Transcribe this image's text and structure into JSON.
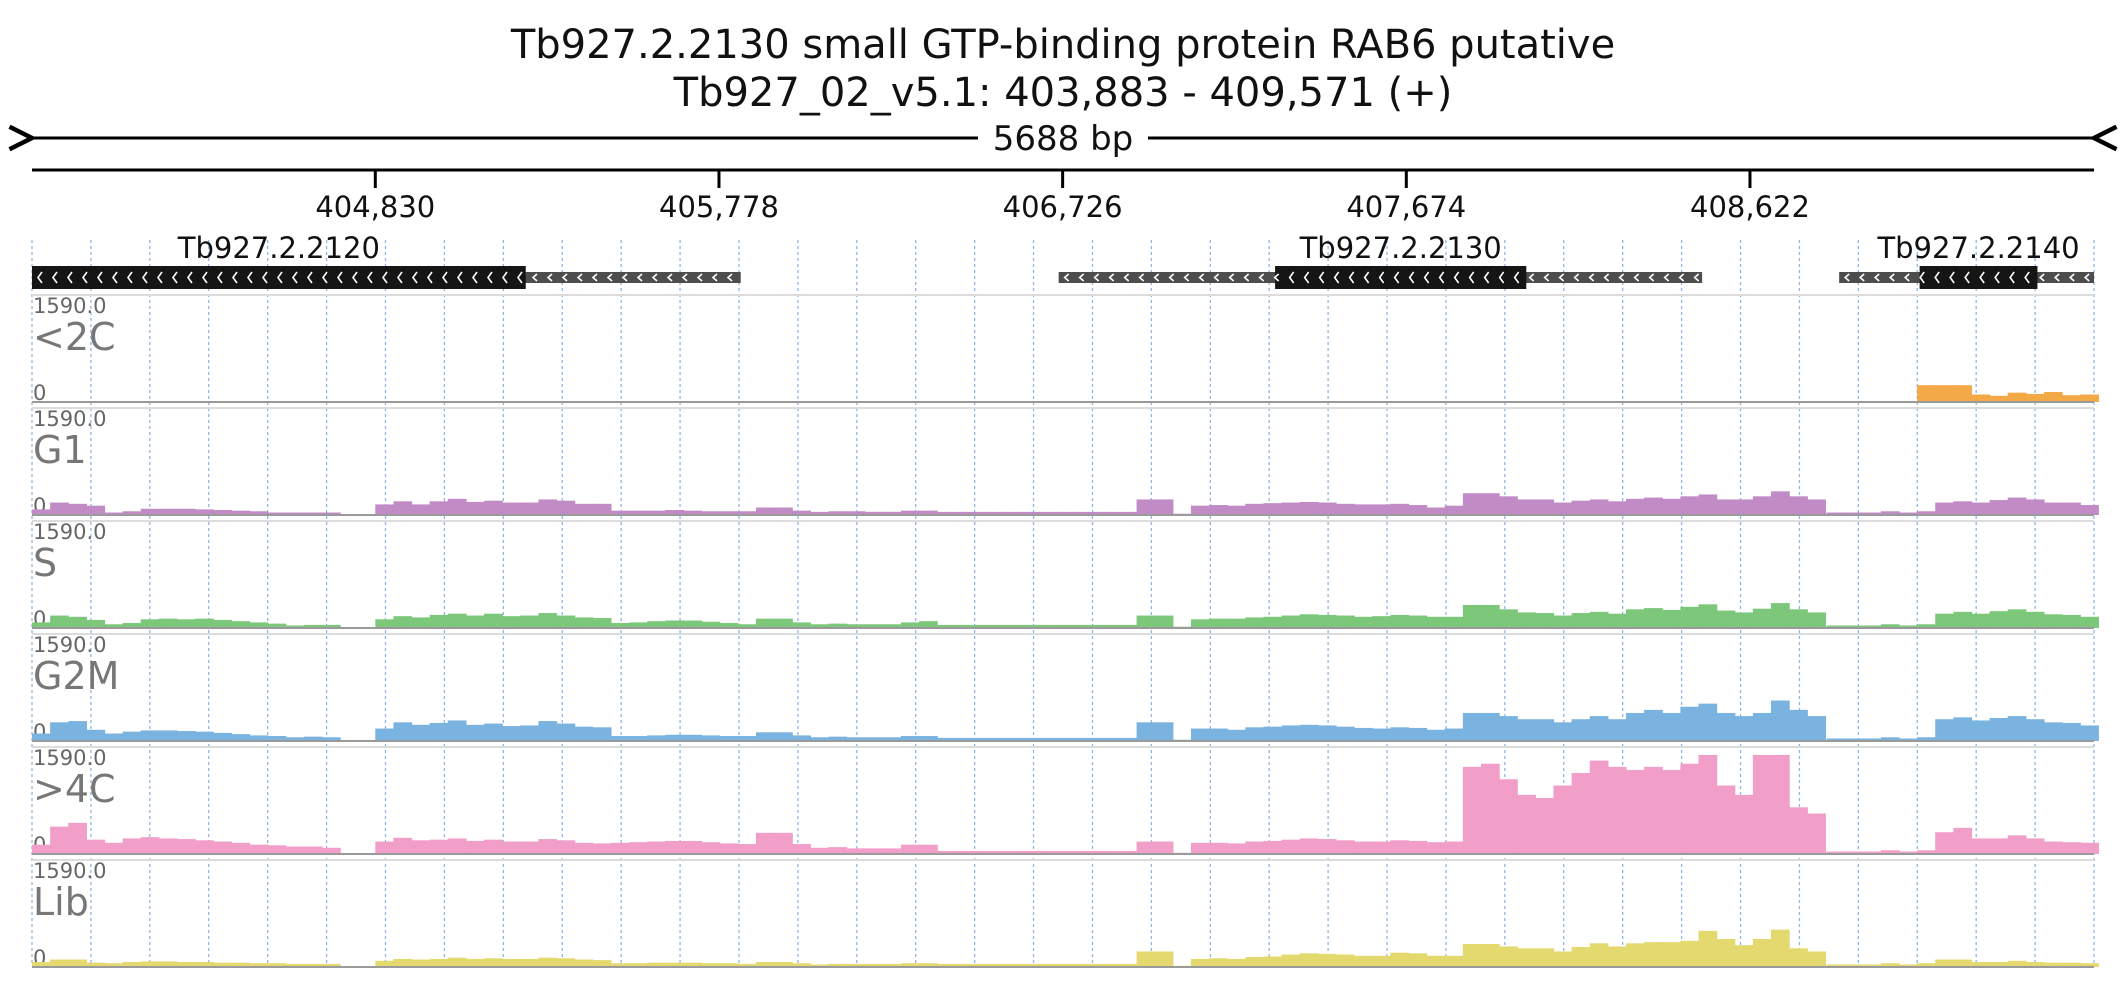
{
  "header": {
    "title": "Tb927.2.2130  small GTP-binding protein RAB6  putative",
    "location": "Tb927_02_v5.1: 403,883 - 409,571 (+)",
    "span_label": "5688 bp"
  },
  "chart_data": {
    "type": "area",
    "region": {
      "chrom": "Tb927_02_v5.1",
      "start": 403883,
      "end": 409571,
      "strand": "+"
    },
    "ruler_ticks": [
      {
        "pos": 404830,
        "label": "404,830"
      },
      {
        "pos": 405778,
        "label": "405,778"
      },
      {
        "pos": 406726,
        "label": "406,726"
      },
      {
        "pos": 407674,
        "label": "407,674"
      },
      {
        "pos": 408622,
        "label": "408,622"
      }
    ],
    "genes": [
      {
        "name": "Tb927.2.2120",
        "strand": "-",
        "start": 403883,
        "end": 405838,
        "cds_start": 403883,
        "cds_end": 405245
      },
      {
        "name": "Tb927.2.2130",
        "strand": "-",
        "start": 406715,
        "end": 408490,
        "cds_start": 407312,
        "cds_end": 408005
      },
      {
        "name": "Tb927.2.2140",
        "strand": "-",
        "start": 408868,
        "end": 409571,
        "cds_start": 409090,
        "cds_end": 409415
      }
    ],
    "y_max_label": "1590.0",
    "y_min_label": "0",
    "ylim": [
      0,
      1590
    ],
    "bin_size": 50,
    "tracks": [
      {
        "name": "<2C",
        "color": "#f3a946",
        "segments": [
          {
            "x0": 409083,
            "values": [
              270,
              270,
              270,
              120,
              100,
              150,
              130,
              160,
              110,
              120,
              110,
              90,
              90,
              70,
              50,
              40,
              60,
              90,
              140,
              150,
              160,
              180,
              170
            ]
          }
        ]
      },
      {
        "name": "G1",
        "color": "#c18bc5",
        "segments": [
          {
            "x0": 403883,
            "values": [
              90,
              200,
              180,
              150,
              40,
              60,
              100,
              100,
              100,
              90,
              80,
              70,
              60,
              40,
              40,
              40,
              40
            ]
          },
          {
            "x0": 404830,
            "values": [
              170,
              220,
              170,
              220,
              260,
              210,
              230,
              200,
              200,
              250,
              230,
              180,
              180
            ]
          },
          {
            "x0": 405480,
            "values": [
              70,
              70,
              70,
              80,
              70,
              60,
              60,
              60,
              120,
              120,
              70,
              50,
              60,
              60,
              50,
              50,
              70,
              70
            ]
          },
          {
            "x0": 406110,
            "values": [
              50,
              50,
              50,
              50,
              50,
              50,
              50,
              50,
              50,
              50,
              50,
              50,
              50,
              50,
              50,
              50,
              50,
              50
            ]
          },
          {
            "x0": 406930,
            "values": [
              250,
              250,
              20,
              150,
              160,
              150,
              180,
              190,
              200,
              210,
              200,
              180,
              170,
              170,
              180,
              160,
              120,
              150,
              350,
              350,
              300,
              250,
              250,
              200,
              230,
              250,
              220,
              260,
              280,
              260,
              300,
              330,
              250,
              250,
              300,
              380,
              300,
              250
            ]
          },
          {
            "x0": 408833,
            "values": [
              40,
              40,
              40,
              60,
              40,
              60,
              200,
              220,
              200,
              240,
              280,
              250,
              200,
              200,
              160
            ]
          }
        ]
      },
      {
        "name": "S",
        "color": "#7cc77a",
        "segments": [
          {
            "x0": 403883,
            "values": [
              90,
              200,
              180,
              130,
              60,
              80,
              140,
              150,
              140,
              150,
              130,
              110,
              90,
              70,
              40,
              50,
              50
            ]
          },
          {
            "x0": 404830,
            "values": [
              140,
              190,
              170,
              210,
              230,
              200,
              230,
              190,
              200,
              240,
              200,
              170,
              160
            ]
          },
          {
            "x0": 405480,
            "values": [
              80,
              90,
              110,
              120,
              120,
              100,
              80,
              60,
              150,
              150,
              90,
              60,
              70,
              60,
              60,
              60,
              90,
              110
            ]
          },
          {
            "x0": 406110,
            "values": [
              50,
              50,
              50,
              50,
              50,
              50,
              50,
              50,
              50,
              50,
              50,
              50,
              50,
              50,
              50,
              50,
              50,
              50
            ]
          },
          {
            "x0": 406930,
            "values": [
              200,
              200,
              20,
              140,
              150,
              150,
              170,
              180,
              200,
              220,
              210,
              200,
              180,
              190,
              210,
              200,
              180,
              180,
              370,
              370,
              300,
              250,
              240,
              200,
              240,
              260,
              230,
              300,
              320,
              290,
              340,
              380,
              280,
              250,
              310,
              400,
              300,
              250
            ]
          },
          {
            "x0": 408833,
            "values": [
              40,
              40,
              40,
              60,
              40,
              60,
              230,
              260,
              230,
              270,
              300,
              260,
              220,
              210,
              180
            ]
          }
        ]
      },
      {
        "name": "G2M",
        "color": "#7ab3e0",
        "segments": [
          {
            "x0": 403883,
            "values": [
              120,
              300,
              320,
              180,
              120,
              150,
              170,
              170,
              160,
              150,
              130,
              110,
              90,
              80,
              60,
              70,
              60
            ]
          },
          {
            "x0": 404830,
            "values": [
              200,
              300,
              260,
              290,
              330,
              260,
              280,
              240,
              250,
              320,
              280,
              230,
              220
            ]
          },
          {
            "x0": 405480,
            "values": [
              80,
              80,
              90,
              100,
              100,
              90,
              80,
              80,
              140,
              140,
              90,
              60,
              70,
              60,
              60,
              60,
              80,
              80
            ]
          },
          {
            "x0": 406110,
            "values": [
              50,
              50,
              50,
              50,
              50,
              50,
              50,
              50,
              50,
              50,
              50,
              50,
              50,
              50,
              50,
              50,
              50,
              50
            ]
          },
          {
            "x0": 406930,
            "values": [
              300,
              300,
              20,
              200,
              200,
              180,
              220,
              230,
              250,
              260,
              250,
              230,
              210,
              200,
              220,
              210,
              180,
              200,
              450,
              450,
              400,
              350,
              350,
              300,
              350,
              400,
              350,
              450,
              500,
              450,
              550,
              600,
              450,
              400,
              450,
              650,
              500,
              400
            ]
          },
          {
            "x0": 408833,
            "values": [
              40,
              40,
              40,
              60,
              40,
              60,
              350,
              380,
              330,
              370,
              400,
              350,
              300,
              290,
              250
            ]
          }
        ]
      },
      {
        "name": ">4C",
        "color": "#f19ec8",
        "segments": [
          {
            "x0": 403883,
            "values": [
              150,
              440,
              500,
              230,
              180,
              250,
              270,
              250,
              240,
              220,
              200,
              180,
              150,
              140,
              120,
              120,
              100
            ]
          },
          {
            "x0": 404830,
            "values": [
              200,
              260,
              220,
              230,
              250,
              210,
              230,
              200,
              200,
              240,
              220,
              180,
              170
            ]
          },
          {
            "x0": 405480,
            "values": [
              180,
              190,
              200,
              210,
              210,
              190,
              170,
              160,
              340,
              340,
              160,
              100,
              110,
              90,
              90,
              90,
              150,
              150
            ]
          },
          {
            "x0": 406110,
            "values": [
              50,
              50,
              50,
              50,
              50,
              50,
              50,
              50,
              50,
              50,
              50,
              50,
              50,
              50,
              50,
              50,
              50,
              50
            ]
          },
          {
            "x0": 406930,
            "values": [
              200,
              200,
              20,
              180,
              180,
              170,
              200,
              210,
              230,
              250,
              240,
              220,
              200,
              200,
              220,
              210,
              190,
              200,
              1400,
              1450,
              1200,
              950,
              900,
              1100,
              1300,
              1500,
              1400,
              1350,
              1400,
              1350,
              1450,
              1600,
              1100,
              950,
              1600,
              2600,
              750,
              650
            ]
          },
          {
            "x0": 408833,
            "values": [
              40,
              40,
              40,
              60,
              40,
              60,
              350,
              420,
              250,
              250,
              300,
              250,
              200,
              190,
              180
            ]
          }
        ]
      },
      {
        "name": "Lib",
        "color": "#e3d96e",
        "segments": [
          {
            "x0": 403883,
            "values": [
              80,
              120,
              120,
              70,
              60,
              80,
              90,
              90,
              80,
              80,
              70,
              70,
              60,
              60,
              50,
              50,
              50
            ]
          },
          {
            "x0": 404830,
            "values": [
              100,
              130,
              120,
              130,
              150,
              130,
              140,
              130,
              130,
              150,
              140,
              120,
              110
            ]
          },
          {
            "x0": 405480,
            "values": [
              60,
              60,
              70,
              70,
              70,
              60,
              60,
              50,
              80,
              80,
              60,
              40,
              50,
              40,
              40,
              40,
              60,
              60
            ]
          },
          {
            "x0": 406110,
            "values": [
              50,
              50,
              50,
              50,
              50,
              50,
              50,
              50,
              50,
              50,
              50,
              50,
              50,
              50,
              50,
              50,
              50,
              50
            ]
          },
          {
            "x0": 406930,
            "values": [
              250,
              250,
              20,
              130,
              140,
              130,
              160,
              170,
              200,
              220,
              210,
              200,
              180,
              180,
              230,
              220,
              180,
              180,
              370,
              370,
              330,
              300,
              300,
              250,
              320,
              380,
              330,
              380,
              400,
              400,
              420,
              580,
              450,
              350,
              450,
              600,
              300,
              250
            ]
          },
          {
            "x0": 408833,
            "values": [
              40,
              40,
              40,
              60,
              40,
              60,
              120,
              120,
              80,
              80,
              100,
              80,
              70,
              70,
              60
            ]
          }
        ]
      }
    ]
  }
}
